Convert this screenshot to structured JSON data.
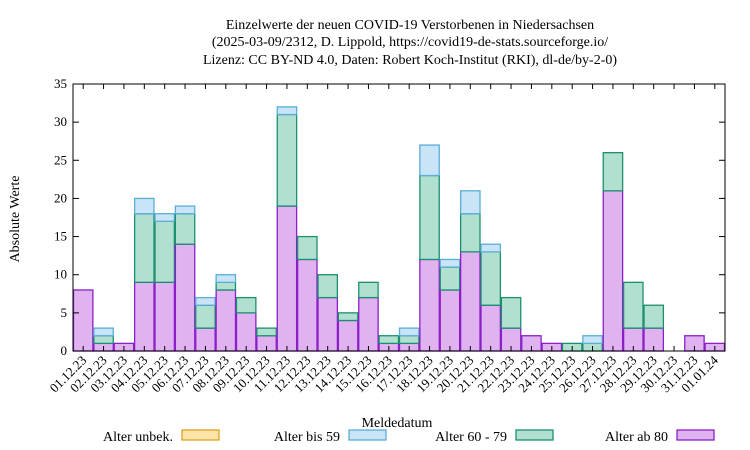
{
  "chart_data": {
    "type": "bar",
    "stacked": true,
    "title_lines": [
      "Einzelwerte der neuen COVID-19 Verstorbenen in Niedersachsen",
      "(2025-03-09/2312, D. Lippold, https://covid19-de-stats.sourceforge.io/",
      "Lizenz: CC BY-ND 4.0, Daten: Robert Koch-Institut (RKI), dl-de/by-2-0)"
    ],
    "xlabel": "Meldedatum",
    "ylabel": "Absolute Werte",
    "ylim": [
      0,
      35
    ],
    "yticks": [
      0,
      5,
      10,
      15,
      20,
      25,
      30,
      35
    ],
    "categories": [
      "01.12.23",
      "02.12.23",
      "03.12.23",
      "04.12.23",
      "05.12.23",
      "06.12.23",
      "07.12.23",
      "08.12.23",
      "09.12.23",
      "10.12.23",
      "11.12.23",
      "12.12.23",
      "13.12.23",
      "14.12.23",
      "15.12.23",
      "16.12.23",
      "17.12.23",
      "18.12.23",
      "19.12.23",
      "20.12.23",
      "21.12.23",
      "22.12.23",
      "23.12.23",
      "24.12.23",
      "25.12.23",
      "26.12.23",
      "27.12.23",
      "28.12.23",
      "29.12.23",
      "30.12.23",
      "31.12.23",
      "01.01.24"
    ],
    "series": [
      {
        "name": "Alter ab 80",
        "color": "#e0b3f0",
        "stroke": "#8b1fc9",
        "values": [
          8,
          1,
          1,
          9,
          9,
          14,
          3,
          8,
          5,
          2,
          19,
          12,
          7,
          4,
          7,
          1,
          1,
          12,
          8,
          13,
          6,
          3,
          2,
          1,
          0,
          0,
          21,
          3,
          3,
          0,
          2,
          1
        ]
      },
      {
        "name": "Alter 60 - 79",
        "color": "#b2e0d0",
        "stroke": "#1a9070",
        "values": [
          0,
          1,
          0,
          9,
          8,
          4,
          3,
          1,
          2,
          1,
          12,
          3,
          3,
          1,
          2,
          1,
          1,
          11,
          3,
          5,
          7,
          4,
          0,
          0,
          1,
          1,
          5,
          6,
          3,
          0,
          0,
          0
        ]
      },
      {
        "name": "Alter bis 59",
        "color": "#c8e4f6",
        "stroke": "#5aaed8",
        "values": [
          0,
          1,
          0,
          2,
          1,
          1,
          1,
          1,
          0,
          0,
          1,
          0,
          0,
          0,
          0,
          0,
          1,
          4,
          1,
          3,
          1,
          0,
          0,
          0,
          0,
          1,
          0,
          0,
          0,
          0,
          0,
          0
        ]
      },
      {
        "name": "Alter unbek.",
        "color": "#fde4a8",
        "stroke": "#e0a020",
        "values": [
          0,
          0,
          0,
          0,
          0,
          0,
          0,
          0,
          0,
          0,
          0,
          0,
          0,
          0,
          0,
          0,
          0,
          0,
          0,
          0,
          0,
          0,
          0,
          0,
          0,
          0,
          0,
          0,
          0,
          0,
          0,
          0
        ]
      }
    ],
    "legend": [
      {
        "label": "Alter unbek.",
        "color": "#fde4a8",
        "stroke": "#e0a020"
      },
      {
        "label": "Alter bis 59",
        "color": "#c8e4f6",
        "stroke": "#5aaed8"
      },
      {
        "label": "Alter 60 - 79",
        "color": "#b2e0d0",
        "stroke": "#1a9070"
      },
      {
        "label": "Alter ab 80",
        "color": "#e0b3f0",
        "stroke": "#8b1fc9"
      }
    ],
    "legend_position": "bottom",
    "grid": false
  }
}
